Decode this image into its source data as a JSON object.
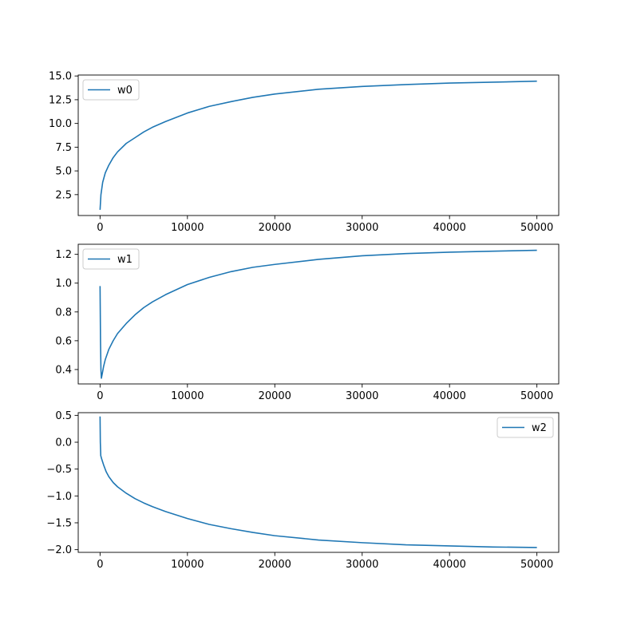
{
  "chart_data": [
    {
      "type": "line",
      "xlim": [
        -2500,
        52500
      ],
      "ylim": [
        0.3,
        15.1
      ],
      "xticks": [
        0,
        10000,
        20000,
        30000,
        40000,
        50000
      ],
      "xtick_labels": [
        "0",
        "10000",
        "20000",
        "30000",
        "40000",
        "50000"
      ],
      "yticks": [
        2.5,
        5.0,
        7.5,
        10.0,
        12.5,
        15.0
      ],
      "ytick_labels": [
        "2.5",
        "5.0",
        "7.5",
        "10.0",
        "12.5",
        "15.0"
      ],
      "legend_loc": "upper left",
      "grid": false,
      "series": [
        {
          "name": "w0",
          "color": "#1f77b4",
          "x": [
            0,
            100,
            300,
            600,
            1000,
            1500,
            2000,
            3000,
            4000,
            5000,
            6000,
            7500,
            10000,
            12500,
            15000,
            17500,
            20000,
            25000,
            30000,
            35000,
            40000,
            45000,
            50000
          ],
          "y": [
            0.9,
            2.5,
            3.8,
            4.8,
            5.6,
            6.4,
            7.0,
            7.9,
            8.5,
            9.1,
            9.6,
            10.2,
            11.1,
            11.8,
            12.3,
            12.75,
            13.1,
            13.6,
            13.9,
            14.1,
            14.25,
            14.35,
            14.45
          ]
        }
      ]
    },
    {
      "type": "line",
      "xlim": [
        -2500,
        52500
      ],
      "ylim": [
        0.3,
        1.27
      ],
      "xticks": [
        0,
        10000,
        20000,
        30000,
        40000,
        50000
      ],
      "xtick_labels": [
        "0",
        "10000",
        "20000",
        "30000",
        "40000",
        "50000"
      ],
      "yticks": [
        0.4,
        0.6,
        0.8,
        1.0,
        1.2
      ],
      "ytick_labels": [
        "0.4",
        "0.6",
        "0.8",
        "1.0",
        "1.2"
      ],
      "legend_loc": "upper left",
      "grid": false,
      "series": [
        {
          "name": "w1",
          "color": "#1f77b4",
          "x": [
            0,
            50,
            100,
            150,
            250,
            400,
            600,
            1000,
            1500,
            2000,
            3000,
            4000,
            5000,
            6000,
            7500,
            10000,
            12500,
            15000,
            17500,
            20000,
            25000,
            30000,
            35000,
            40000,
            45000,
            50000
          ],
          "y": [
            0.98,
            0.6,
            0.4,
            0.34,
            0.37,
            0.42,
            0.47,
            0.54,
            0.6,
            0.65,
            0.72,
            0.78,
            0.83,
            0.87,
            0.92,
            0.99,
            1.04,
            1.08,
            1.11,
            1.13,
            1.165,
            1.19,
            1.205,
            1.215,
            1.222,
            1.228
          ]
        }
      ]
    },
    {
      "type": "line",
      "xlim": [
        -2500,
        52500
      ],
      "ylim": [
        -2.05,
        0.55
      ],
      "xticks": [
        0,
        10000,
        20000,
        30000,
        40000,
        50000
      ],
      "xtick_labels": [
        "0",
        "10000",
        "20000",
        "30000",
        "40000",
        "50000"
      ],
      "yticks": [
        -2.0,
        -1.5,
        -1.0,
        -0.5,
        0.0,
        0.5
      ],
      "ytick_labels": [
        "−2.0",
        "−1.5",
        "−1.0",
        "−0.5",
        "0.0",
        "0.5"
      ],
      "legend_loc": "upper right",
      "grid": false,
      "series": [
        {
          "name": "w2",
          "color": "#1f77b4",
          "x": [
            0,
            30,
            80,
            200,
            400,
            700,
            1000,
            1500,
            2000,
            3000,
            4000,
            5000,
            6000,
            7500,
            10000,
            12500,
            15000,
            17500,
            20000,
            25000,
            30000,
            35000,
            40000,
            45000,
            50000
          ],
          "y": [
            0.48,
            0.0,
            -0.25,
            -0.32,
            -0.42,
            -0.55,
            -0.64,
            -0.75,
            -0.83,
            -0.95,
            -1.05,
            -1.13,
            -1.2,
            -1.29,
            -1.42,
            -1.53,
            -1.61,
            -1.68,
            -1.74,
            -1.82,
            -1.87,
            -1.91,
            -1.93,
            -1.95,
            -1.96
          ]
        }
      ]
    }
  ]
}
